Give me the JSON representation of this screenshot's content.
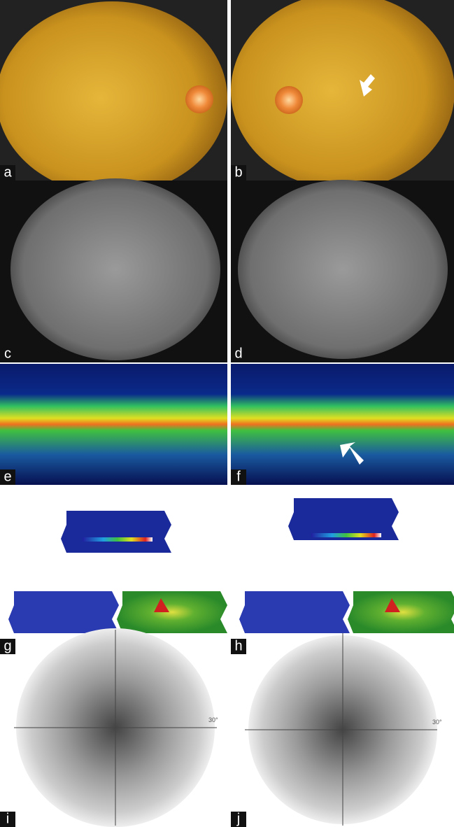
{
  "panels": [
    {
      "label": "a"
    },
    {
      "label": "b"
    },
    {
      "label": "c"
    },
    {
      "label": "d"
    },
    {
      "label": "e"
    },
    {
      "label": "f"
    },
    {
      "label": "g"
    },
    {
      "label": "h"
    },
    {
      "label": "i",
      "axis_label": "30°"
    },
    {
      "label": "j",
      "axis_label": "30°"
    }
  ]
}
